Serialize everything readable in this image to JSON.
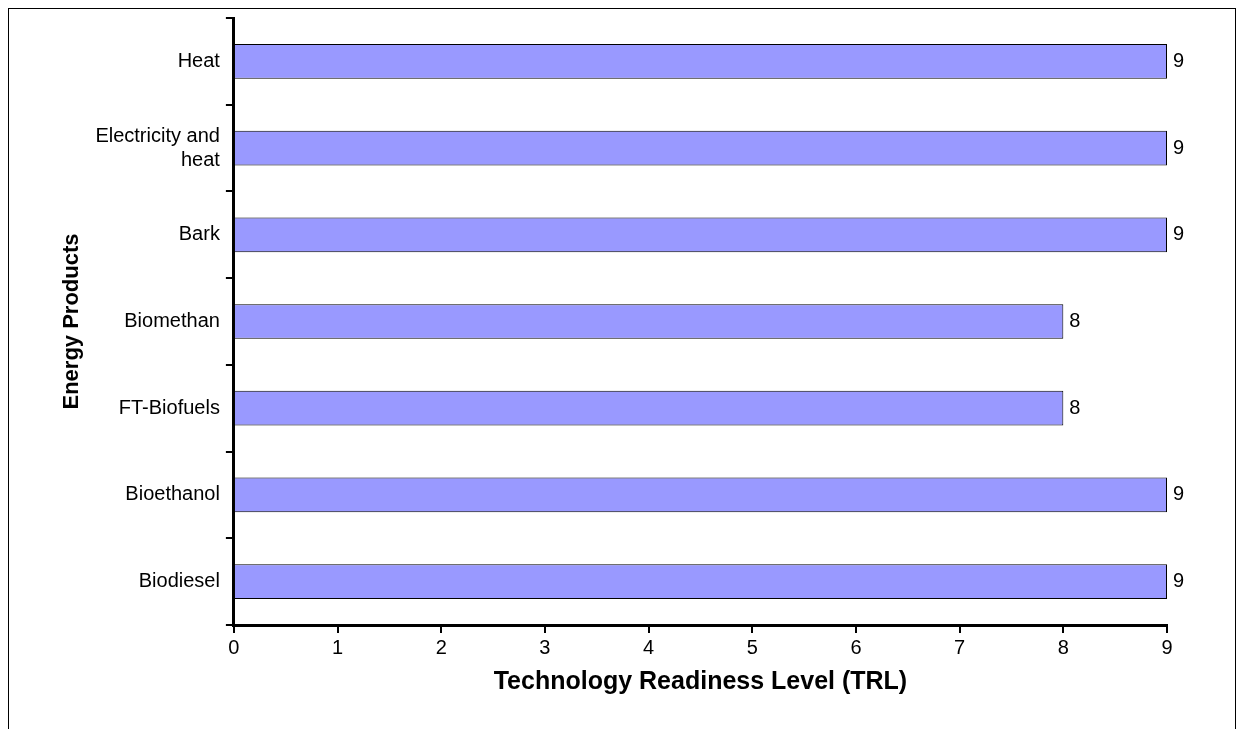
{
  "chart_data": {
    "type": "bar",
    "orientation": "horizontal",
    "xlabel": "Technology Readiness Level (TRL)",
    "ylabel": "Energy Products",
    "categories": [
      "Heat",
      "Electricity and\nheat",
      "Bark",
      "Biomethan",
      "FT-Biofuels",
      "Bioethanol",
      "Biodiesel"
    ],
    "values": [
      9,
      9,
      9,
      8,
      8,
      9,
      9
    ],
    "color": "#9999ff",
    "xlim": [
      0,
      9
    ],
    "xticks": [
      0,
      1,
      2,
      3,
      4,
      5,
      6,
      7,
      8,
      9
    ],
    "data_labels": true,
    "legend": false
  }
}
